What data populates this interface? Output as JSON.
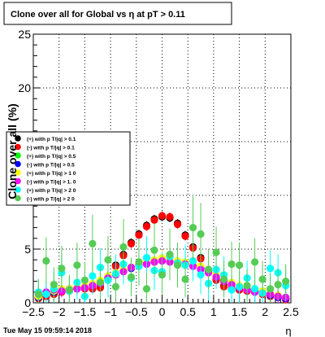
{
  "chart_data": {
    "type": "scatter",
    "title": "Clone  over all for Global vs  η at pT > 0.11",
    "xlabel": "η",
    "ylabel": "Clone  over all (%)",
    "xlim": [
      -2.5,
      2.5
    ],
    "ylim": [
      0,
      25
    ],
    "x_ticks": [
      "−2.5",
      "−2",
      "−1.5",
      "−1",
      "−0.5",
      "0",
      "0.5",
      "1",
      "1.5",
      "2",
      "2.5"
    ],
    "y_ticks": [
      "0",
      "5",
      "10",
      "15",
      "20",
      "25"
    ],
    "grid": true,
    "legend_position": "left, mid-height",
    "timestamp": "Tue May 15 09:59:14 2018",
    "series": [
      {
        "name": "(+) with p T/|q| > 0.1",
        "color": "#000000",
        "x": [
          -2.4,
          -2.25,
          -2.1,
          -1.95,
          -1.8,
          -1.65,
          -1.5,
          -1.35,
          -1.2,
          -1.05,
          -0.9,
          -0.75,
          -0.6,
          -0.45,
          -0.3,
          -0.15,
          0.0,
          0.15,
          0.3,
          0.45,
          0.6,
          0.75,
          0.9,
          1.05,
          1.2,
          1.35,
          1.5,
          1.65,
          1.8,
          1.95,
          2.1,
          2.25,
          2.4
        ],
        "y": [
          0.4,
          0.6,
          0.8,
          1.0,
          1.2,
          1.3,
          1.4,
          1.3,
          1.5,
          2.3,
          3.5,
          4.5,
          5.6,
          6.4,
          7.2,
          7.8,
          8.0,
          7.9,
          7.4,
          6.3,
          5.2,
          4.2,
          3.1,
          2.2,
          1.6,
          1.3,
          1.2,
          1.1,
          1.0,
          0.9,
          0.7,
          0.5,
          0.3
        ],
        "err": [
          0.3,
          0.3,
          0.3,
          0.3,
          0.3,
          0.3,
          0.3,
          0.3,
          0.3,
          0.3,
          0.4,
          0.4,
          0.4,
          0.4,
          0.4,
          0.4,
          0.4,
          0.4,
          0.4,
          0.4,
          0.4,
          0.4,
          0.4,
          0.3,
          0.3,
          0.3,
          0.3,
          0.3,
          0.3,
          0.3,
          0.3,
          0.3,
          0.3
        ]
      },
      {
        "name": "(-) with p T/|q| > 0.1",
        "color": "#ff0000",
        "x": [
          -2.4,
          -2.25,
          -2.1,
          -1.95,
          -1.8,
          -1.65,
          -1.5,
          -1.35,
          -1.2,
          -1.05,
          -0.9,
          -0.75,
          -0.6,
          -0.45,
          -0.3,
          -0.15,
          0.0,
          0.15,
          0.3,
          0.45,
          0.6,
          0.75,
          0.9,
          1.05,
          1.2,
          1.35,
          1.5,
          1.65,
          1.8,
          1.95,
          2.1,
          2.25,
          2.4
        ],
        "y": [
          0.4,
          0.6,
          0.8,
          1.0,
          1.1,
          1.3,
          1.3,
          1.3,
          1.4,
          2.2,
          3.4,
          4.4,
          5.5,
          6.3,
          7.1,
          7.7,
          8.1,
          8.0,
          7.3,
          6.2,
          5.1,
          4.1,
          3.0,
          2.1,
          1.5,
          1.3,
          1.2,
          1.1,
          1.0,
          0.8,
          0.6,
          0.5,
          0.3
        ],
        "err": [
          0.3,
          0.3,
          0.3,
          0.3,
          0.3,
          0.3,
          0.3,
          0.3,
          0.3,
          0.3,
          0.4,
          0.4,
          0.4,
          0.4,
          0.4,
          0.4,
          0.4,
          0.4,
          0.4,
          0.4,
          0.4,
          0.4,
          0.4,
          0.3,
          0.3,
          0.3,
          0.3,
          0.3,
          0.3,
          0.3,
          0.3,
          0.3,
          0.3
        ]
      },
      {
        "name": "(+) with p T/|q| > 0.5",
        "color": "#00ff00",
        "x": [
          -2.4,
          -2.25,
          -2.1,
          -1.95,
          -1.8,
          -1.65,
          -1.5,
          -1.35,
          -1.2,
          -1.05,
          -0.9,
          -0.75,
          -0.6,
          -0.45,
          -0.3,
          -0.15,
          0.0,
          0.15,
          0.3,
          0.45,
          0.6,
          0.75,
          0.9,
          1.05,
          1.2,
          1.35,
          1.5,
          1.65,
          1.8,
          1.95,
          2.1,
          2.25,
          2.4
        ],
        "y": [
          0.5,
          0.8,
          1.0,
          1.2,
          1.3,
          1.4,
          1.5,
          1.7,
          2.0,
          2.4,
          2.7,
          3.0,
          3.3,
          3.5,
          3.7,
          3.9,
          4.0,
          3.9,
          3.8,
          3.7,
          3.5,
          3.3,
          3.0,
          2.5,
          2.1,
          1.8,
          1.5,
          1.3,
          1.2,
          1.0,
          0.8,
          0.6,
          0.4
        ],
        "err": [
          0.4,
          0.4,
          0.4,
          0.4,
          0.4,
          0.4,
          0.5,
          0.5,
          0.5,
          0.5,
          0.5,
          0.5,
          0.5,
          0.5,
          0.5,
          0.5,
          0.5,
          0.5,
          0.5,
          0.5,
          0.5,
          0.5,
          0.5,
          0.5,
          0.5,
          0.5,
          0.5,
          0.4,
          0.4,
          0.4,
          0.4,
          0.4,
          0.4
        ]
      },
      {
        "name": "(-) with p T/|q| > 0.5",
        "color": "#0000ff",
        "x": [
          -2.4,
          -2.25,
          -2.1,
          -1.95,
          -1.8,
          -1.65,
          -1.5,
          -1.35,
          -1.2,
          -1.05,
          -0.9,
          -0.75,
          -0.6,
          -0.45,
          -0.3,
          -0.15,
          0.0,
          0.15,
          0.3,
          0.45,
          0.6,
          0.75,
          0.9,
          1.05,
          1.2,
          1.35,
          1.5,
          1.65,
          1.8,
          1.95,
          2.1,
          2.25,
          2.4
        ],
        "y": [
          0.5,
          0.8,
          1.0,
          1.1,
          1.3,
          1.4,
          1.5,
          1.7,
          1.9,
          2.3,
          2.7,
          3.0,
          3.2,
          3.5,
          3.7,
          3.8,
          3.9,
          3.9,
          3.8,
          3.6,
          3.5,
          3.2,
          2.9,
          2.5,
          2.1,
          1.8,
          1.5,
          1.3,
          1.1,
          0.9,
          0.7,
          0.5,
          0.4
        ],
        "err": [
          0.4,
          0.4,
          0.4,
          0.4,
          0.4,
          0.4,
          0.5,
          0.5,
          0.5,
          0.5,
          0.5,
          0.5,
          0.5,
          0.5,
          0.5,
          0.5,
          0.5,
          0.5,
          0.5,
          0.5,
          0.5,
          0.5,
          0.5,
          0.5,
          0.5,
          0.5,
          0.5,
          0.4,
          0.4,
          0.4,
          0.4,
          0.4,
          0.4
        ]
      },
      {
        "name": "(+) with p T/|q| > 1 0",
        "color": "#ffff00",
        "x": [
          -2.4,
          -2.25,
          -2.1,
          -1.95,
          -1.8,
          -1.65,
          -1.5,
          -1.35,
          -1.2,
          -1.05,
          -0.9,
          -0.75,
          -0.6,
          -0.45,
          -0.3,
          -0.15,
          0.0,
          0.15,
          0.3,
          0.45,
          0.6,
          0.75,
          0.9,
          1.05,
          1.2,
          1.35,
          1.5,
          1.65,
          1.8,
          1.95,
          2.1,
          2.25,
          2.4
        ],
        "y": [
          0.6,
          0.9,
          1.1,
          1.3,
          1.3,
          1.5,
          1.6,
          1.8,
          2.1,
          2.5,
          2.8,
          3.1,
          3.3,
          3.6,
          3.9,
          4.0,
          4.2,
          4.0,
          3.9,
          3.8,
          3.6,
          3.4,
          3.1,
          2.6,
          2.2,
          1.9,
          1.6,
          1.4,
          1.3,
          1.1,
          0.9,
          0.7,
          0.5
        ],
        "err": [
          0.6,
          0.6,
          0.6,
          0.6,
          0.6,
          0.6,
          0.7,
          0.7,
          0.7,
          0.7,
          0.7,
          0.7,
          0.7,
          0.7,
          0.7,
          0.7,
          0.7,
          0.7,
          0.7,
          0.7,
          0.7,
          0.7,
          0.7,
          0.7,
          0.7,
          0.7,
          0.7,
          0.6,
          0.6,
          0.6,
          0.6,
          0.6,
          0.6
        ]
      },
      {
        "name": "(-) with p T/|q| > 1. 0",
        "color": "#ff00ff",
        "x": [
          -2.4,
          -2.25,
          -2.1,
          -1.95,
          -1.8,
          -1.65,
          -1.5,
          -1.35,
          -1.2,
          -1.05,
          -0.9,
          -0.75,
          -0.6,
          -0.45,
          -0.3,
          -0.15,
          0.0,
          0.15,
          0.3,
          0.45,
          0.6,
          0.75,
          0.9,
          1.05,
          1.2,
          1.35,
          1.5,
          1.65,
          1.8,
          1.95,
          2.1,
          2.25,
          2.4
        ],
        "y": [
          0.8,
          1.0,
          1.2,
          1.1,
          1.2,
          1.3,
          1.4,
          1.6,
          1.8,
          2.3,
          2.6,
          2.9,
          3.3,
          3.5,
          3.6,
          3.8,
          3.9,
          3.8,
          3.7,
          3.6,
          3.4,
          3.1,
          2.8,
          2.4,
          2.0,
          1.7,
          1.4,
          1.2,
          1.0,
          0.9,
          0.8,
          0.6,
          0.5
        ],
        "err": [
          0.6,
          0.6,
          0.6,
          0.6,
          0.6,
          0.6,
          0.7,
          0.7,
          0.7,
          0.7,
          0.7,
          0.7,
          0.7,
          0.7,
          0.7,
          0.7,
          0.7,
          0.7,
          0.7,
          0.7,
          0.7,
          0.7,
          0.7,
          0.7,
          0.7,
          0.7,
          0.7,
          0.6,
          0.6,
          0.6,
          0.6,
          0.6,
          0.6
        ]
      },
      {
        "name": "(+) with p T/|q| > 2 0",
        "color": "#00ffff",
        "x": [
          -2.4,
          -2.25,
          -2.1,
          -1.95,
          -1.8,
          -1.65,
          -1.5,
          -1.35,
          -1.2,
          -1.05,
          -0.9,
          -0.75,
          -0.6,
          -0.45,
          -0.3,
          -0.15,
          0.0,
          0.15,
          0.3,
          0.45,
          0.6,
          0.75,
          0.9,
          1.05,
          1.2,
          1.35,
          1.5,
          1.65,
          1.8,
          1.95,
          2.1,
          2.25,
          2.4
        ],
        "y": [
          1.0,
          0.8,
          1.3,
          2.8,
          1.1,
          1.9,
          0.6,
          2.5,
          3.3,
          2.1,
          2.7,
          3.6,
          2.3,
          3.4,
          4.2,
          3.0,
          2.9,
          4.3,
          3.7,
          3.5,
          3.9,
          2.6,
          1.8,
          3.1,
          2.6,
          1.2,
          1.5,
          2.3,
          1.3,
          0.9,
          3.2,
          2.8,
          1.6
        ],
        "err": [
          1.2,
          1.3,
          1.5,
          1.8,
          1.4,
          1.6,
          1.3,
          1.7,
          1.8,
          1.6,
          1.8,
          1.9,
          1.7,
          1.8,
          2.0,
          1.8,
          1.8,
          2.0,
          1.9,
          1.9,
          1.9,
          1.8,
          1.6,
          1.8,
          1.7,
          1.4,
          1.5,
          1.6,
          1.4,
          1.3,
          1.7,
          1.7,
          1.4
        ]
      },
      {
        "name": "(-) with p T/|q| > 2 0",
        "color": "#55cc55",
        "x": [
          -2.4,
          -2.25,
          -2.1,
          -1.95,
          -1.8,
          -1.65,
          -1.5,
          -1.35,
          -1.2,
          -1.05,
          -0.9,
          -0.75,
          -0.6,
          -0.45,
          -0.3,
          -0.15,
          0.0,
          0.15,
          0.3,
          0.45,
          0.6,
          0.75,
          0.9,
          1.05,
          1.2,
          1.35,
          1.5,
          1.65,
          1.8,
          1.95,
          2.1,
          2.25,
          2.4
        ],
        "y": [
          0.8,
          3.9,
          1.7,
          3.2,
          1.2,
          3.5,
          2.1,
          5.5,
          1.9,
          4.0,
          1.5,
          5.2,
          2.4,
          3.8,
          1.3,
          4.9,
          2.6,
          4.5,
          3.5,
          2.2,
          7.0,
          6.4,
          3.1,
          4.7,
          2.2,
          3.6,
          3.5,
          1.6,
          3.8,
          2.2,
          1.3,
          1.7,
          2.0
        ],
        "err": [
          1.4,
          2.2,
          1.6,
          2.1,
          1.4,
          2.1,
          1.7,
          2.7,
          1.6,
          2.2,
          1.5,
          2.6,
          1.8,
          2.2,
          1.5,
          2.5,
          1.8,
          2.4,
          2.1,
          1.7,
          3.0,
          2.9,
          1.9,
          2.4,
          1.7,
          2.1,
          2.1,
          1.5,
          2.2,
          1.7,
          1.4,
          1.5,
          1.6
        ]
      }
    ]
  }
}
